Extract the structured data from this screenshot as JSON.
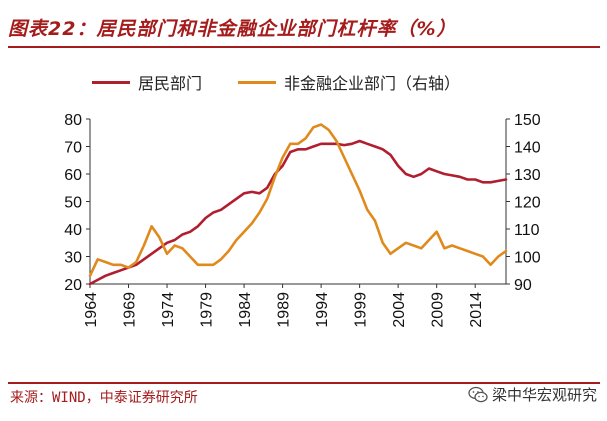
{
  "title": "图表22：居民部门和非金融企业部门杠杆率（%）",
  "source": "来源：WIND，中泰证券研究所",
  "watermark": "梁中华宏观研究",
  "chart_data": {
    "type": "line",
    "title": "图表22：居民部门和非金融企业部门杠杆率（%）",
    "xlabel": "",
    "ylabel": "",
    "xlim": [
      1964,
      2018
    ],
    "xticks": [
      1964,
      1969,
      1974,
      1979,
      1984,
      1989,
      1994,
      1999,
      2004,
      2009,
      2014
    ],
    "y_left": {
      "lim": [
        20,
        80
      ],
      "ticks": [
        20,
        30,
        40,
        50,
        60,
        70,
        80
      ]
    },
    "y_right": {
      "lim": [
        90,
        150
      ],
      "ticks": [
        90,
        100,
        110,
        120,
        130,
        140,
        150
      ]
    },
    "grid": false,
    "legend": "top",
    "series": [
      {
        "name": "居民部门",
        "axis": "left",
        "color": "#b01e2f",
        "x": [
          1964,
          1965,
          1966,
          1967,
          1968,
          1969,
          1970,
          1971,
          1972,
          1973,
          1974,
          1975,
          1976,
          1977,
          1978,
          1979,
          1980,
          1981,
          1982,
          1983,
          1984,
          1985,
          1986,
          1987,
          1988,
          1989,
          1990,
          1991,
          1992,
          1993,
          1994,
          1995,
          1996,
          1997,
          1998,
          1999,
          2000,
          2001,
          2002,
          2003,
          2004,
          2005,
          2006,
          2007,
          2008,
          2009,
          2010,
          2011,
          2012,
          2013,
          2014,
          2015,
          2016,
          2017,
          2018
        ],
        "values": [
          20,
          21.5,
          23,
          24,
          25,
          26,
          27,
          29,
          31,
          33,
          35,
          36,
          38,
          39,
          41,
          44,
          46,
          47,
          49,
          51,
          53,
          53.5,
          53,
          55,
          60,
          63,
          68,
          69,
          69,
          70,
          71,
          71,
          71,
          70.5,
          71,
          72,
          71,
          70,
          69,
          67,
          63,
          60,
          59,
          60,
          62,
          61,
          60,
          59.5,
          59,
          58,
          58,
          57,
          57,
          57.5,
          58
        ]
      },
      {
        "name": "非金融企业部门（右轴）",
        "axis": "right",
        "color": "#e08a1e",
        "x": [
          1964,
          1965,
          1966,
          1967,
          1968,
          1969,
          1970,
          1971,
          1972,
          1973,
          1974,
          1975,
          1976,
          1977,
          1978,
          1979,
          1980,
          1981,
          1982,
          1983,
          1984,
          1985,
          1986,
          1987,
          1988,
          1989,
          1990,
          1991,
          1992,
          1993,
          1994,
          1995,
          1996,
          1997,
          1998,
          1999,
          2000,
          2001,
          2002,
          2003,
          2004,
          2005,
          2006,
          2007,
          2008,
          2009,
          2010,
          2011,
          2012,
          2013,
          2014,
          2015,
          2016,
          2017,
          2018
        ],
        "values": [
          93,
          99,
          98,
          97,
          97,
          96,
          98,
          104,
          111,
          107,
          101,
          104,
          103,
          100,
          97,
          97,
          97,
          99,
          102,
          106,
          109,
          112,
          116,
          121,
          129,
          136,
          141,
          141,
          143,
          147,
          148,
          146,
          142,
          136,
          130,
          124,
          117,
          113,
          105,
          101,
          103,
          105,
          104,
          103,
          106,
          109,
          103,
          104,
          103,
          102,
          101,
          100,
          97,
          100,
          102
        ]
      }
    ]
  }
}
